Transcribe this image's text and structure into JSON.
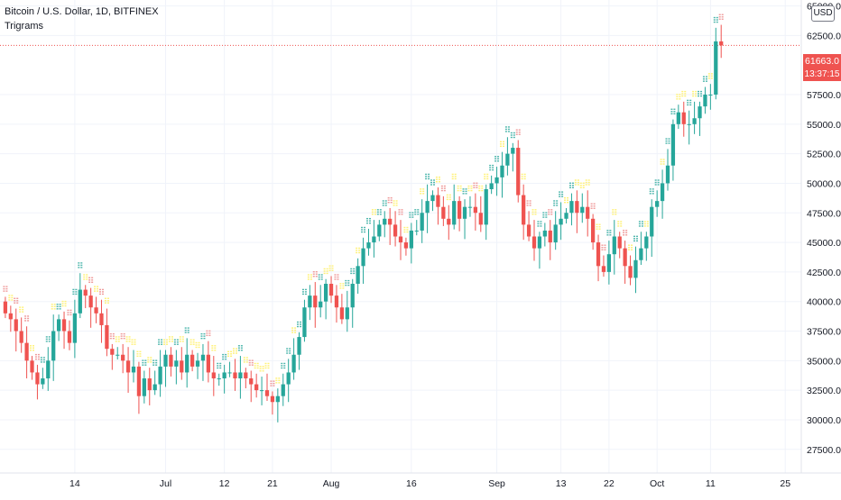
{
  "header": {
    "symbol_title": "Bitcoin / U.S. Dollar, 1D, BITFINEX",
    "indicator_name": "Trigrams"
  },
  "currency_button": "USD",
  "last_price": {
    "value": "61663.0",
    "countdown": "13:37:15"
  },
  "colors": {
    "up": "#26a69a",
    "down": "#ef5350",
    "grid": "#f0f3fa",
    "axis_text": "#131722",
    "trigram_up": "#4db6ac",
    "trigram_down": "#ef9a9a",
    "trigram_neutral": "#fff176",
    "price_line": "#ef5350"
  },
  "chart_data": {
    "type": "candlestick",
    "title": "Bitcoin / U.S. Dollar, 1D, BITFINEX",
    "ylim": [
      25500,
      65500
    ],
    "y_ticks": [
      "27500.0",
      "30000.0",
      "32500.0",
      "35000.0",
      "37500.0",
      "40000.0",
      "42500.0",
      "45000.0",
      "47500.0",
      "50000.0",
      "52500.0",
      "55000.0",
      "57500.0",
      "62500.0",
      "65000.0"
    ],
    "x_tick_labels": [
      {
        "label": "14",
        "day": 13
      },
      {
        "label": "Jul",
        "day": 30
      },
      {
        "label": "12",
        "day": 41
      },
      {
        "label": "21",
        "day": 50
      },
      {
        "label": "Aug",
        "day": 61
      },
      {
        "label": "16",
        "day": 76
      },
      {
        "label": "Sep",
        "day": 92
      },
      {
        "label": "13",
        "day": 104
      },
      {
        "label": "22",
        "day": 113
      },
      {
        "label": "Oct",
        "day": 122
      },
      {
        "label": "11",
        "day": 132
      },
      {
        "label": "25",
        "day": 146
      }
    ],
    "x_range_days": [
      -1,
      149
    ],
    "grid": true,
    "last_price": 61663.0,
    "closes": [
      39000,
      38500,
      37500,
      36500,
      35000,
      34000,
      33000,
      33500,
      35000,
      37500,
      38500,
      37500,
      36500,
      39000,
      41000,
      40500,
      39500,
      39000,
      38000,
      36000,
      35500,
      35500,
      35000,
      34000,
      34500,
      32000,
      33500,
      32500,
      33000,
      34500,
      35500,
      34500,
      35000,
      34000,
      35500,
      34500,
      35000,
      35500,
      34000,
      33500,
      33500,
      34000,
      34000,
      33500,
      34000,
      33500,
      33000,
      32500,
      32500,
      32000,
      31500,
      32000,
      33000,
      34000,
      35500,
      37000,
      39500,
      40500,
      39500,
      40000,
      41500,
      40500,
      39500,
      38500,
      39500,
      41500,
      43000,
      44500,
      45000,
      45500,
      46500,
      47000,
      46500,
      45500,
      45000,
      44500,
      46000,
      46000,
      47500,
      48500,
      49000,
      48000,
      47000,
      46500,
      48500,
      47000,
      48000,
      48000,
      47500,
      46500,
      49500,
      50000,
      50500,
      51500,
      52500,
      53000,
      49000,
      46500,
      45500,
      44500,
      45500,
      46000,
      45000,
      46500,
      47000,
      47500,
      48500,
      47500,
      48000,
      47000,
      45000,
      43000,
      42500,
      44000,
      45500,
      44500,
      43000,
      42000,
      43500,
      44500,
      45500,
      48000,
      48500,
      50000,
      51500,
      55000,
      56000,
      55000,
      55000,
      55500,
      56500,
      57500,
      57500,
      62000,
      61663
    ],
    "opens": [
      40000,
      39000,
      38500,
      37500,
      36500,
      35000,
      34000,
      33000,
      33500,
      35000,
      37500,
      38500,
      37500,
      36500,
      39000,
      41000,
      40500,
      39500,
      39000,
      38000,
      36000,
      35500,
      35500,
      35000,
      34000,
      34500,
      32000,
      33500,
      32500,
      33000,
      34500,
      35500,
      34500,
      35000,
      34000,
      35500,
      34500,
      35000,
      35500,
      34000,
      33500,
      33500,
      34000,
      34000,
      33500,
      34000,
      33500,
      33000,
      32500,
      32500,
      32000,
      31500,
      32000,
      33000,
      34000,
      35500,
      37000,
      39500,
      40500,
      39500,
      40000,
      41500,
      40500,
      39500,
      38500,
      39500,
      41500,
      43000,
      44500,
      45000,
      45500,
      46500,
      47000,
      46500,
      45500,
      45000,
      44500,
      46000,
      46000,
      47500,
      48500,
      49000,
      48000,
      47000,
      46500,
      48500,
      47000,
      48000,
      48000,
      47500,
      46500,
      49500,
      50000,
      50500,
      51500,
      52500,
      53000,
      49000,
      46500,
      45500,
      44500,
      45500,
      46000,
      45000,
      46500,
      47000,
      47500,
      48500,
      47500,
      48000,
      47000,
      45000,
      43000,
      42500,
      44000,
      45500,
      44500,
      43000,
      42000,
      43500,
      44500,
      45500,
      48000,
      48500,
      50000,
      51500,
      55000,
      56000,
      55000,
      55000,
      55500,
      56500,
      57500,
      57500,
      62000
    ]
  }
}
